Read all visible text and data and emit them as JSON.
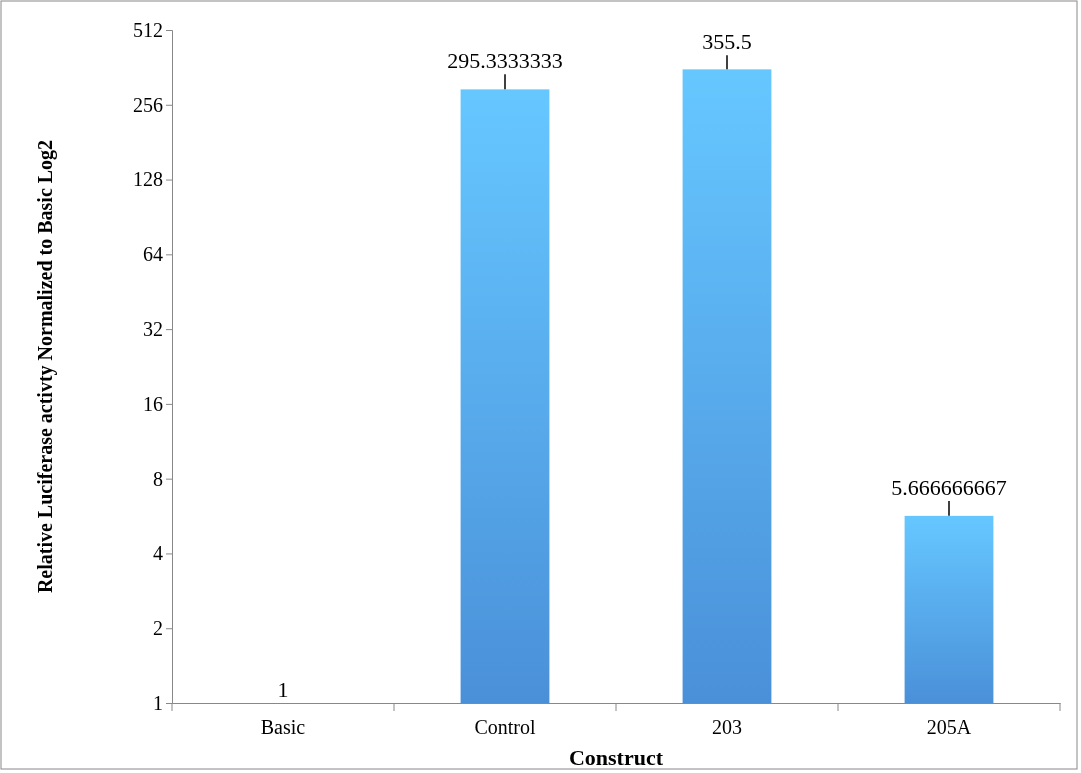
{
  "chart_data": {
    "type": "bar",
    "xlabel": "Construct",
    "ylabel": "Relative Luciferase activty Normalized to Basic Log2",
    "categories": [
      "Basic",
      "Control",
      "203",
      "205A"
    ],
    "values": [
      1,
      295.3333333,
      355.5,
      5.666666667
    ],
    "errors": [
      null,
      [
        295.3333333,
        340
      ],
      [
        355.5,
        405
      ],
      [
        5.666666667,
        6.5
      ]
    ],
    "color": "#4a90d9",
    "log": true,
    "ylim": [
      1,
      512
    ],
    "yticks": [
      1,
      2,
      4,
      8,
      16,
      32,
      64,
      128,
      256,
      512
    ],
    "data_labels": true,
    "grid": false
  }
}
